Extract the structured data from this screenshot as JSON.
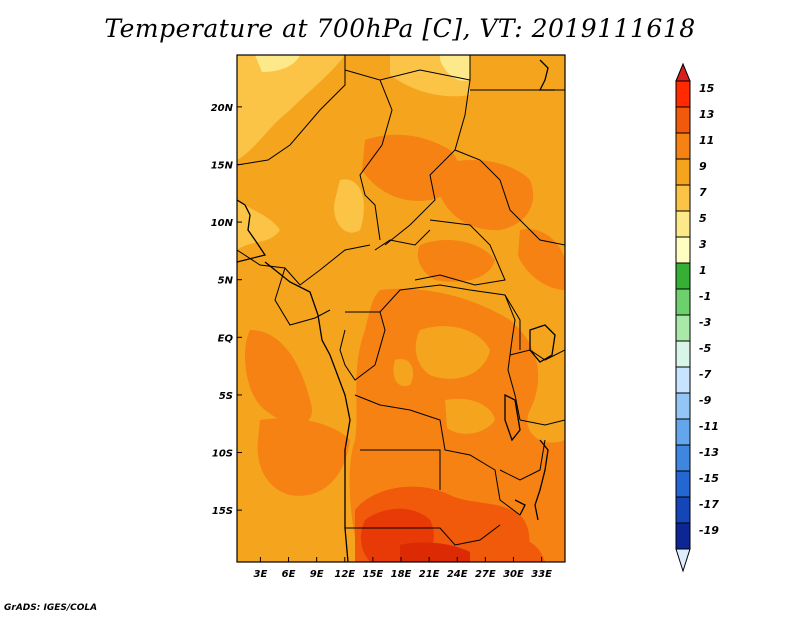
{
  "title": "Temperature at 700hPa [C], VT: 2019111618",
  "credit": "GrADS: IGES/COLA",
  "map": {
    "lat_ticks": [
      "20N",
      "15N",
      "10N",
      "5N",
      "EQ",
      "5S",
      "10S",
      "15S"
    ],
    "lon_ticks": [
      "3E",
      "6E",
      "9E",
      "12E",
      "15E",
      "18E",
      "21E",
      "24E",
      "27E",
      "30E",
      "33E"
    ],
    "lat_range": [
      -19.5,
      24.5
    ],
    "lon_range": [
      0.5,
      35.5
    ],
    "field": "Temperature at 700hPa",
    "units": "C"
  },
  "legend": {
    "labels": [
      "15",
      "13",
      "11",
      "9",
      "7",
      "5",
      "3",
      "1",
      "-1",
      "-3",
      "-5",
      "-7",
      "-9",
      "-11",
      "-13",
      "-15",
      "-17",
      "-19"
    ],
    "colors": [
      "#ff2a00",
      "#f05a0a",
      "#f58212",
      "#f5a41e",
      "#fbc446",
      "#fde98a",
      "#fefec0",
      "#35b035",
      "#6cd06c",
      "#a8e8a8",
      "#d8f6e8",
      "#c6e4ff",
      "#94c6f5",
      "#64a6ec",
      "#3e86e0",
      "#2466d2",
      "#1446b8",
      "#0c2696"
    ],
    "top_arrow_color": "#d81e1e",
    "bottom_arrow_color": "#ddeeff"
  }
}
